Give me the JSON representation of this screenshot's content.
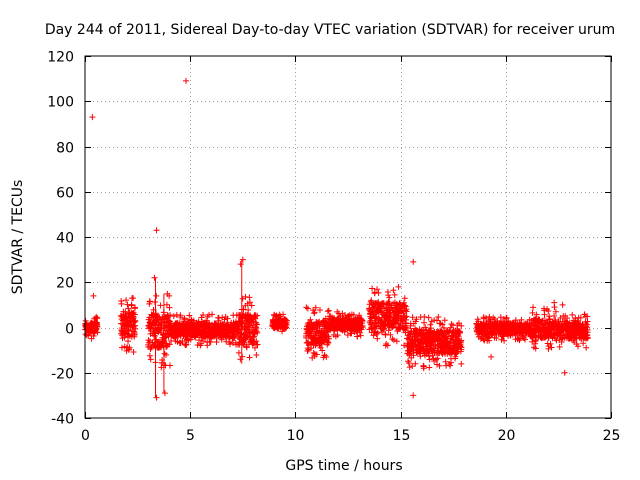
{
  "chart_data": {
    "type": "scatter",
    "title": "Day 244 of 2011, Sidereal Day-to-day VTEC variation (SDTVAR) for receiver urum",
    "xlabel": "GPS time / hours",
    "ylabel": "SDTVAR / TECUs",
    "xlim": [
      0,
      25
    ],
    "ylim": [
      -40,
      120
    ],
    "xticks": [
      0,
      5,
      10,
      15,
      20,
      25
    ],
    "yticks": [
      -40,
      -20,
      0,
      20,
      40,
      60,
      80,
      100,
      120
    ],
    "grid": true,
    "marker": "+",
    "color": "#ff0000",
    "series": [
      {
        "name": "SDTVAR",
        "clusters": [
          {
            "x": [
              0.0,
              0.6
            ],
            "y": [
              -5,
              5
            ]
          },
          {
            "x": [
              1.7,
              2.4
            ],
            "y": [
              -11,
              14
            ]
          },
          {
            "x": [
              3.0,
              4.1
            ],
            "y": [
              -18,
              15
            ]
          },
          {
            "x": [
              4.1,
              7.3
            ],
            "y": [
              -8,
              6
            ]
          },
          {
            "x": [
              7.3,
              8.2
            ],
            "y": [
              -16,
              14
            ]
          },
          {
            "x": [
              8.9,
              9.6
            ],
            "y": [
              -3,
              6
            ]
          },
          {
            "x": [
              10.5,
              11.6
            ],
            "y": [
              -14,
              9
            ]
          },
          {
            "x": [
              11.6,
              13.2
            ],
            "y": [
              -4,
              7
            ]
          },
          {
            "x": [
              13.5,
              15.3
            ],
            "y": [
              -8,
              18
            ]
          },
          {
            "x": [
              15.3,
              17.9
            ],
            "y": [
              -18,
              5
            ]
          },
          {
            "x": [
              18.6,
              21.2
            ],
            "y": [
              -6,
              5
            ]
          },
          {
            "x": [
              21.2,
              22.4
            ],
            "y": [
              -10,
              9
            ]
          },
          {
            "x": [
              22.4,
              23.9
            ],
            "y": [
              -9,
              6
            ]
          }
        ],
        "outliers": [
          {
            "x": 0.35,
            "y": 93
          },
          {
            "x": 0.4,
            "y": 14
          },
          {
            "x": 4.8,
            "y": 109
          },
          {
            "x": 3.4,
            "y": 43
          },
          {
            "x": 3.3,
            "y": 22
          },
          {
            "x": 3.4,
            "y": -31
          },
          {
            "x": 3.8,
            "y": -29
          },
          {
            "x": 7.5,
            "y": 30
          },
          {
            "x": 7.4,
            "y": 28
          },
          {
            "x": 15.6,
            "y": 29
          },
          {
            "x": 15.6,
            "y": -30
          },
          {
            "x": 15.7,
            "y": -16
          },
          {
            "x": 16.1,
            "y": -18
          },
          {
            "x": 19.3,
            "y": -13
          },
          {
            "x": 22.3,
            "y": 11
          },
          {
            "x": 22.7,
            "y": 10
          },
          {
            "x": 22.8,
            "y": -20
          }
        ],
        "spikes": [
          {
            "x": 3.35,
            "y": [
              -31,
              22
            ]
          },
          {
            "x": 3.75,
            "y": [
              -29,
              15
            ]
          },
          {
            "x": 7.45,
            "y": [
              -16,
              30
            ]
          }
        ]
      }
    ]
  }
}
